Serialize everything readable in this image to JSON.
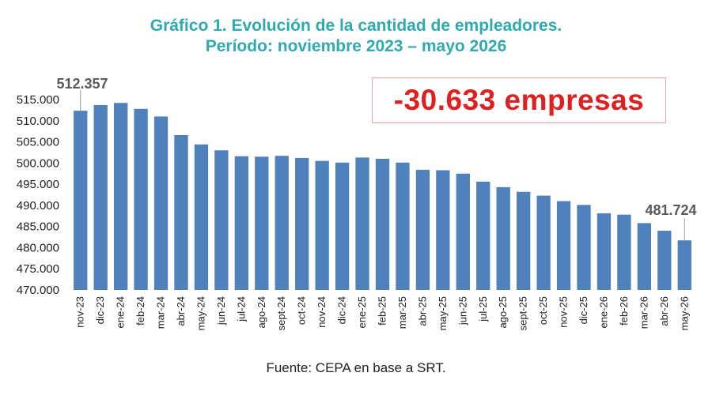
{
  "chart_data": {
    "type": "bar",
    "title": "Gráfico 1. Evolución de la cantidad de empleadores.",
    "subtitle": "Período: noviembre 2023 – mayo 2026",
    "categories": [
      "nov-23",
      "dic-23",
      "ene-24",
      "feb-24",
      "mar-24",
      "abr-24",
      "may-24",
      "jun-24",
      "jul-24",
      "ago-24",
      "sept-24",
      "oct-24",
      "nov-24",
      "dic-24",
      "ene-25",
      "feb-25",
      "mar-25",
      "abr-25",
      "may-25",
      "jun-25",
      "jul-25",
      "ago-25",
      "sept-25",
      "oct-25",
      "nov-25",
      "dic-25",
      "ene-26",
      "feb-26",
      "mar-26",
      "abr-26",
      "may-26"
    ],
    "values": [
      512357,
      513700,
      514200,
      512800,
      511000,
      506600,
      504400,
      503000,
      501600,
      501500,
      501700,
      501200,
      500500,
      500100,
      501300,
      501000,
      500100,
      498400,
      498300,
      497500,
      495600,
      494300,
      493200,
      492300,
      491000,
      490100,
      488100,
      487800,
      485800,
      484000,
      481724
    ],
    "ylim": [
      470000,
      515000
    ],
    "yticks": [
      "470.000",
      "475.000",
      "480.000",
      "485.000",
      "490.000",
      "495.000",
      "500.000",
      "505.000",
      "510.000",
      "515.000"
    ],
    "ytick_values": [
      470000,
      475000,
      480000,
      485000,
      490000,
      495000,
      500000,
      505000,
      510000,
      515000
    ],
    "grid": false,
    "bar_color": "#4f81bd",
    "annotations": [
      {
        "label": "512.357",
        "index": 0
      },
      {
        "label": "481.724",
        "index": 30
      }
    ],
    "callout": "-30.633 empresas",
    "callout_color": "#e02020",
    "source": "Fuente: CEPA en base a SRT."
  }
}
